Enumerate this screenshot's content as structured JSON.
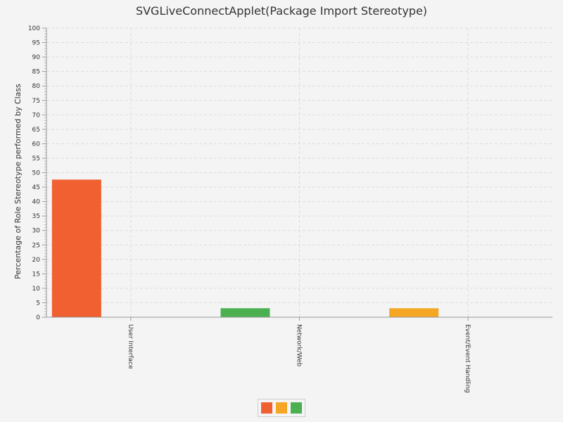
{
  "chart_data": {
    "type": "bar",
    "title": "SVGLiveConnectApplet(Package Import Stereotype)",
    "ylabel": "Percentage of Role Stereotype performed by Class",
    "xlabel": "",
    "ylim": [
      0,
      100
    ],
    "ytick_step": 5,
    "categories": [
      "User Interface",
      "Network/Web",
      "Event/Event Handling"
    ],
    "series": [
      {
        "values": [
          47.6,
          0,
          0
        ],
        "color": "#f06030"
      },
      {
        "values": [
          0,
          0,
          3.1
        ],
        "color": "#f5a623"
      },
      {
        "values": [
          0,
          3.1,
          0
        ],
        "color": "#4caf50"
      }
    ],
    "grid": true,
    "legend_position": "bottom"
  }
}
